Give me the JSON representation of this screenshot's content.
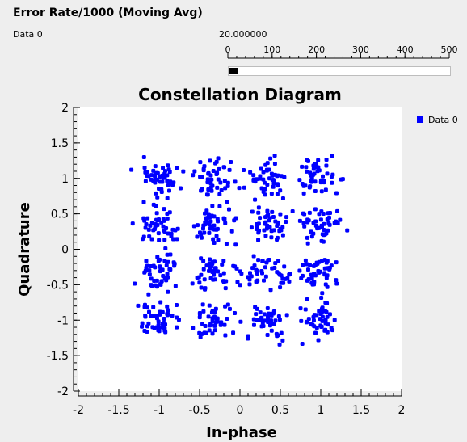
{
  "gauge": {
    "title": "Error Rate/1000 (Moving Avg)",
    "series_label": "Data 0",
    "value_text": "20.000000",
    "value": 20,
    "min": 0,
    "max": 500,
    "ticks": [
      "0",
      "100",
      "200",
      "300",
      "400",
      "500"
    ],
    "fill_color": "#000000"
  },
  "chart_data": {
    "type": "scatter",
    "title": "Constellation Diagram",
    "xlabel": "In-phase",
    "ylabel": "Quadrature",
    "xlim": [
      -2,
      2
    ],
    "ylim": [
      -2,
      2
    ],
    "xticks": [
      "-2",
      "-1.5",
      "-1",
      "-0.5",
      "0",
      "0.5",
      "1",
      "1.5",
      "2"
    ],
    "yticks": [
      "2",
      "1.5",
      "1",
      "0.5",
      "0",
      "-0.5",
      "-1",
      "-1.5",
      "-2"
    ],
    "grid": false,
    "legend": "top-right",
    "series": [
      {
        "name": "Data 0",
        "color": "#0000ff",
        "constellation_points": [
          [
            -1,
            1
          ],
          [
            -0.33,
            1
          ],
          [
            0.33,
            1
          ],
          [
            1,
            1
          ],
          [
            -1,
            0.33
          ],
          [
            -0.33,
            0.33
          ],
          [
            0.33,
            0.33
          ],
          [
            1,
            0.33
          ],
          [
            -1,
            -0.33
          ],
          [
            -0.33,
            -0.33
          ],
          [
            0.33,
            -0.33
          ],
          [
            1,
            -0.33
          ],
          [
            -1,
            -1
          ],
          [
            -0.33,
            -1
          ],
          [
            0.33,
            -1
          ],
          [
            1,
            -1
          ]
        ],
        "spread": 0.13
      }
    ]
  }
}
